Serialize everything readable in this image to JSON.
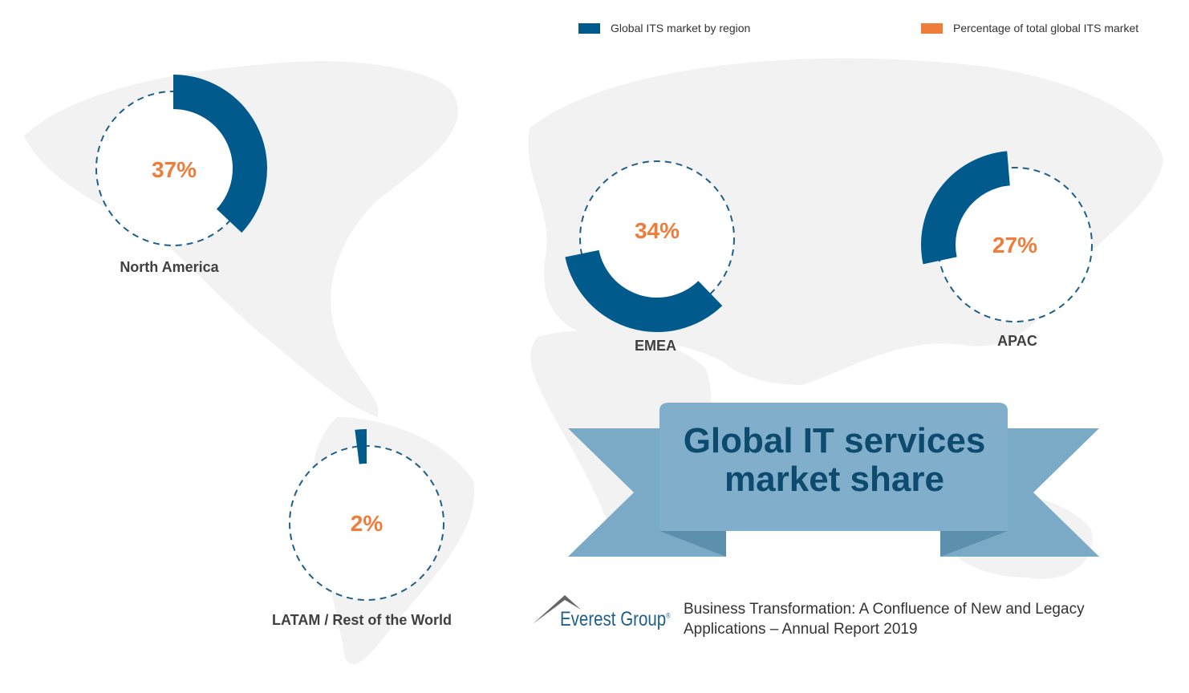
{
  "chart_data": {
    "type": "pie",
    "variant": "donut-arcs",
    "title": "Global IT services market share",
    "legend": [
      {
        "label": "Global ITS market by region",
        "color": "#005a8c"
      },
      {
        "label": "Percentage of total global ITS market",
        "color": "#f07c3a"
      }
    ],
    "legend_placement": "top-right",
    "slices": [
      {
        "region": "North America",
        "value": 37,
        "label": "37%"
      },
      {
        "region": "EMEA",
        "value": 34,
        "label": "34%"
      },
      {
        "region": "APAC",
        "value": 27,
        "label": "27%"
      },
      {
        "region": "LATAM / Rest of the World",
        "value": 2,
        "label": "2%"
      }
    ]
  },
  "banner": {
    "line1": "Global IT services",
    "line2": "market share"
  },
  "footer": {
    "logo": "Everest Group",
    "report_line1": "Business Transformation: A Confluence of New and Legacy",
    "report_line2": "Applications – Annual Report 2019"
  },
  "colors": {
    "arc": "#005a8c",
    "percent": "#f07c3a",
    "banner": "#7aaac6",
    "map": "#f2f2f2"
  }
}
